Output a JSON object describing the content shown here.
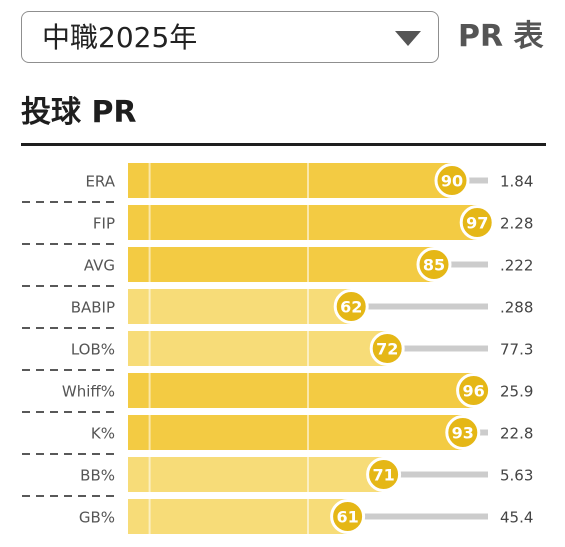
{
  "header": {
    "season_selected": "中職2025年",
    "pr_table_label": "PR 表",
    "section_title": "投球 PR"
  },
  "colors": {
    "bar_high": "#f3cb43",
    "bar_low": "#f7dc78",
    "marker": "#e5b716",
    "track": "#cccccc"
  },
  "chart_data": {
    "type": "bar",
    "orientation": "horizontal",
    "xlim": [
      0,
      100
    ],
    "categories": [
      "ERA",
      "FIP",
      "AVG",
      "BABIP",
      "LOB%",
      "Whiff%",
      "K%",
      "BB%",
      "GB%"
    ],
    "series": [
      {
        "values": [
          90,
          97,
          85,
          62,
          72,
          96,
          93,
          71,
          61
        ]
      }
    ],
    "stat_values": [
      "1.84",
      "2.28",
      ".222",
      ".288",
      "77.3",
      "25.9",
      "22.8",
      "5.63",
      "45.4"
    ]
  }
}
